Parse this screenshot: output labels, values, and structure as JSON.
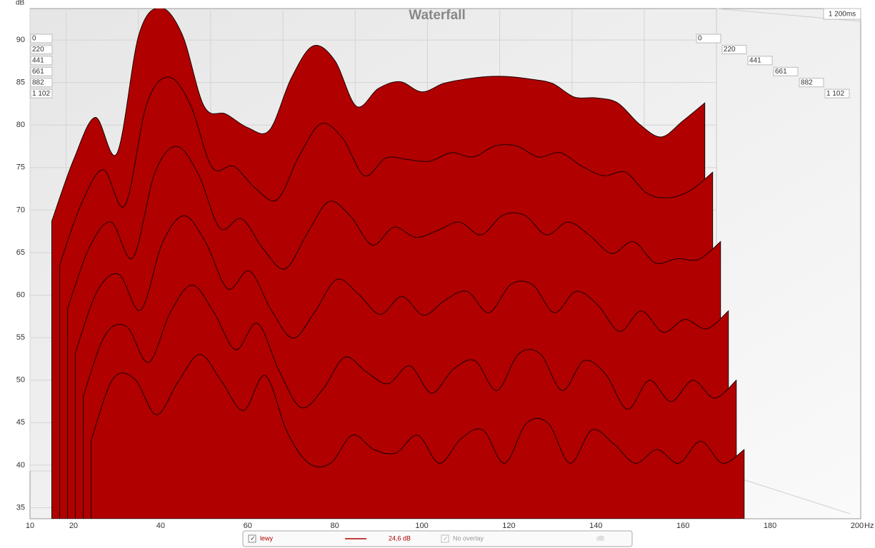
{
  "chart_data": {
    "type": "waterfall",
    "title": "Waterfall",
    "ylabel": "dB",
    "xlabel": "Hz",
    "xlim": [
      10,
      200
    ],
    "xticks": [
      10,
      20,
      40,
      60,
      80,
      100,
      120,
      140,
      160,
      180,
      200
    ],
    "ylim": [
      33.7,
      93.7
    ],
    "yticks": [
      35,
      40,
      45,
      50,
      55,
      60,
      65,
      70,
      75,
      80,
      85,
      90
    ],
    "zlim": [
      0,
      1200
    ],
    "zlim_label": "1 200ms",
    "zticks": [
      0,
      220,
      441,
      661,
      882,
      {
        "value": 1102,
        "label": "1 102"
      }
    ],
    "grid": true,
    "x": [
      15,
      20,
      25,
      30,
      35,
      40,
      45,
      50,
      55,
      60,
      65,
      70,
      75,
      80,
      85,
      90,
      95,
      100,
      105,
      110,
      115,
      120,
      125,
      130,
      135,
      140,
      145,
      150,
      155,
      160,
      165
    ],
    "series": [
      {
        "time": 0,
        "color": "#b00000",
        "values": [
          68.7,
          75.9,
          80.9,
          76.7,
          90.6,
          93.8,
          90.6,
          82.2,
          81.3,
          79.7,
          79.4,
          85.5,
          89.3,
          87.6,
          82.2,
          84.3,
          85.1,
          83.9,
          84.9,
          85.4,
          85.7,
          85.7,
          85.4,
          84.9,
          83.3,
          83.2,
          82.6,
          80.1,
          78.6,
          80.5,
          82.6
        ]
      },
      {
        "time": 220,
        "color": "#b00000",
        "values": [
          63.7,
          70.9,
          74.9,
          70.7,
          82.6,
          85.8,
          82.6,
          75.2,
          75.3,
          72.7,
          71.4,
          76.5,
          80.3,
          78.6,
          74.2,
          76.3,
          76.1,
          75.9,
          76.9,
          76.4,
          77.7,
          77.7,
          76.4,
          76.9,
          75.3,
          74.2,
          74.6,
          72.1,
          71.6,
          72.5,
          74.6
        ]
      },
      {
        "time": 441,
        "color": "#b00000",
        "values": [
          58.7,
          65.9,
          68.9,
          64.7,
          74.6,
          77.8,
          74.6,
          68.2,
          69.3,
          65.7,
          63.4,
          67.5,
          71.3,
          69.6,
          66.2,
          68.3,
          67.1,
          67.9,
          68.9,
          67.4,
          69.7,
          69.7,
          67.4,
          68.9,
          67.3,
          65.2,
          66.6,
          64.1,
          64.6,
          64.5,
          66.6
        ]
      },
      {
        "time": 661,
        "color": "#b00000",
        "values": [
          53.7,
          60.9,
          62.9,
          58.7,
          66.6,
          69.8,
          66.6,
          61.2,
          63.3,
          58.7,
          55.4,
          58.5,
          62.3,
          60.6,
          58.2,
          60.3,
          58.1,
          59.9,
          60.9,
          58.4,
          61.7,
          61.7,
          58.4,
          60.9,
          59.3,
          56.2,
          58.6,
          56.1,
          57.6,
          56.5,
          58.6
        ]
      },
      {
        "time": 882,
        "color": "#b00000",
        "values": [
          48.7,
          55.9,
          56.9,
          52.7,
          58.6,
          61.8,
          58.6,
          54.2,
          57.3,
          51.7,
          47.4,
          49.5,
          53.3,
          51.6,
          50.2,
          52.3,
          49.1,
          51.9,
          52.9,
          49.4,
          53.7,
          53.7,
          49.4,
          52.9,
          51.3,
          47.2,
          50.6,
          48.1,
          50.6,
          48.5,
          50.6
        ]
      },
      {
        "time": 1102,
        "color": "#b00000",
        "values": [
          43.7,
          50.9,
          50.9,
          46.7,
          50.6,
          53.8,
          50.6,
          47.2,
          51.3,
          44.7,
          41,
          41,
          44.3,
          42.6,
          42.2,
          44.3,
          41,
          43.9,
          44.9,
          41,
          45.7,
          45.7,
          41,
          44.9,
          43.3,
          41,
          42.6,
          41,
          43.6,
          41,
          42.6
        ]
      }
    ],
    "legend": {
      "name": "lewy",
      "level": "24,6 dB",
      "overlay": "No overlay",
      "unit": "dB"
    }
  }
}
